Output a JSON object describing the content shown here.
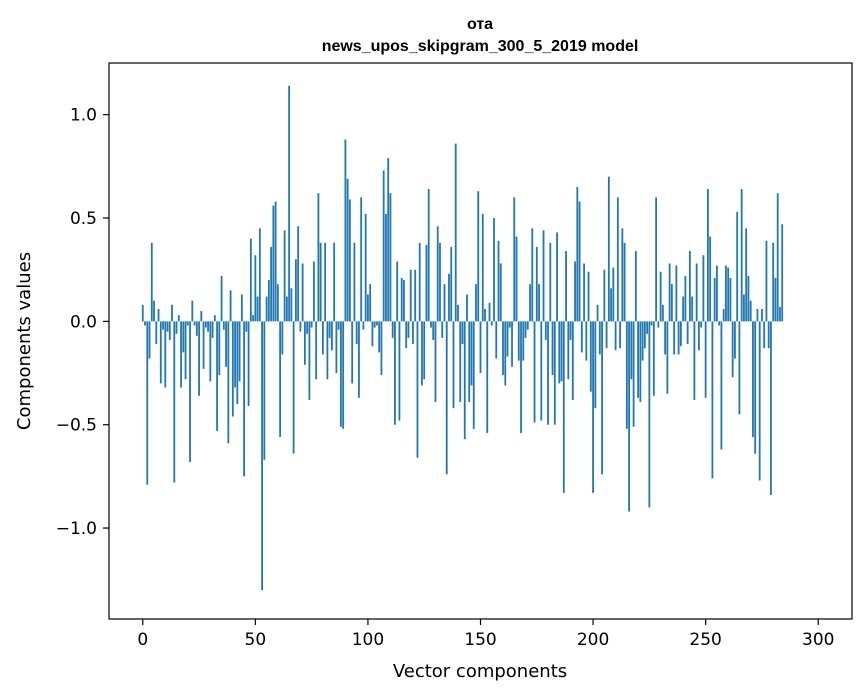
{
  "chart_data": {
    "type": "bar",
    "title": "ота",
    "subtitle": "news_upos_skipgram_300_5_2019 model",
    "xlabel": "Vector components",
    "ylabel": "Components values",
    "xlim": [
      -15,
      315
    ],
    "ylim": [
      -1.44,
      1.25
    ],
    "xticks": [
      0,
      50,
      100,
      150,
      200,
      250,
      300
    ],
    "xtick_labels": [
      "0",
      "50",
      "100",
      "150",
      "200",
      "250",
      "300"
    ],
    "yticks": [
      -1.0,
      -0.5,
      0.0,
      0.5,
      1.0
    ],
    "ytick_labels": [
      "−1.0",
      "−0.5",
      "0.0",
      "0.5",
      "1.0"
    ],
    "grid": false,
    "color": "#1f77b4",
    "values": [
      0.08,
      -0.02,
      -0.79,
      -0.18,
      0.38,
      0.1,
      -0.11,
      0.06,
      -0.3,
      -0.04,
      -0.32,
      -0.05,
      -0.09,
      0.08,
      -0.78,
      -0.06,
      0.03,
      -0.32,
      -0.15,
      -0.28,
      -0.02,
      -0.68,
      0.1,
      -0.02,
      -0.07,
      -0.36,
      0.05,
      -0.23,
      -0.03,
      -0.05,
      -0.29,
      -0.08,
      0.03,
      -0.53,
      -0.26,
      0.22,
      -0.04,
      -0.22,
      -0.59,
      0.15,
      -0.46,
      -0.32,
      -0.4,
      -0.29,
      0.13,
      -0.75,
      -0.05,
      -0.41,
      0.4,
      0.03,
      0.32,
      0.12,
      0.45,
      -1.3,
      -0.67,
      0.12,
      0.2,
      0.36,
      0.56,
      0.58,
      0.18,
      -0.56,
      -0.16,
      0.44,
      0.12,
      1.14,
      0.16,
      -0.64,
      0.3,
      0.46,
      -0.05,
      0.28,
      -0.21,
      -0.06,
      -0.38,
      -0.03,
      0.29,
      -0.28,
      0.62,
      0.38,
      -0.16,
      0.38,
      -0.28,
      -0.08,
      -0.14,
      0.38,
      -0.25,
      -0.04,
      -0.51,
      -0.52,
      0.88,
      0.69,
      0.59,
      -0.3,
      0.38,
      -0.11,
      -0.37,
      0.6,
      -0.04,
      0.52,
      0.13,
      0.18,
      -0.12,
      -0.03,
      -0.02,
      -0.15,
      -0.26,
      0.73,
      0.52,
      0.79,
      0.62,
      -0.08,
      -0.5,
      0.29,
      -0.48,
      0.21,
      0.2,
      -0.13,
      -0.08,
      0.25,
      -0.11,
      0.25,
      -0.66,
      0.38,
      -0.31,
      -0.28,
      0.37,
      0.64,
      -0.03,
      -0.09,
      -0.39,
      0.46,
      0.38,
      -0.08,
      0.18,
      -0.74,
      0.23,
      0.36,
      -0.42,
      0.86,
      0.08,
      -0.39,
      -0.11,
      -0.57,
      0.13,
      -0.39,
      -0.31,
      -0.52,
      0.18,
      0.63,
      -0.25,
      0.52,
      0.06,
      -0.54,
      0.09,
      -0.02,
      0.5,
      -0.18,
      0.39,
      0.28,
      -0.26,
      -0.31,
      -0.17,
      -0.03,
      -0.22,
      0.6,
      0.41,
      -0.19,
      -0.54,
      -0.19,
      -0.08,
      -0.04,
      0.18,
      0.45,
      -0.49,
      0.36,
      0.18,
      -0.48,
      0.44,
      -0.09,
      -0.5,
      0.38,
      -0.26,
      -0.5,
      0.43,
      -0.3,
      -0.29,
      -0.83,
      0.34,
      -0.28,
      -0.09,
      -0.38,
      0.29,
      0.65,
      0.58,
      -0.15,
      0.28,
      -0.19,
      0.24,
      -0.34,
      -0.83,
      -0.42,
      0.08,
      -0.16,
      -0.74,
      0.25,
      -0.13,
      0.7,
      0.16,
      0.26,
      -0.14,
      0.6,
      -0.13,
      0.45,
      0.38,
      -0.52,
      -0.92,
      -0.28,
      -0.51,
      0.34,
      -0.37,
      -0.39,
      -0.19,
      -0.13,
      -0.06,
      -0.9,
      -0.02,
      -0.36,
      0.6,
      -0.03,
      0.24,
      0.08,
      -0.16,
      -0.35,
      0.28,
      0.18,
      -0.16,
      0.27,
      -0.16,
      -0.12,
      0.12,
      0.22,
      -0.11,
      0.34,
      0.12,
      -0.38,
      0.28,
      -0.14,
      -0.03,
      0.32,
      -0.37,
      0.64,
      0.41,
      -0.76,
      0.21,
      0.27,
      -0.02,
      -0.62,
      0.06,
      0.27,
      0.26,
      0.21,
      -0.27,
      -0.18,
      0.53,
      -0.45,
      0.64,
      0.13,
      0.45,
      0.22,
      0.1,
      -0.56,
      -0.64,
      0.06,
      -0.77,
      0.06,
      -0.13,
      0.39,
      -0.13,
      -0.84,
      0.38,
      0.21,
      0.62,
      0.07,
      0.47
    ]
  }
}
